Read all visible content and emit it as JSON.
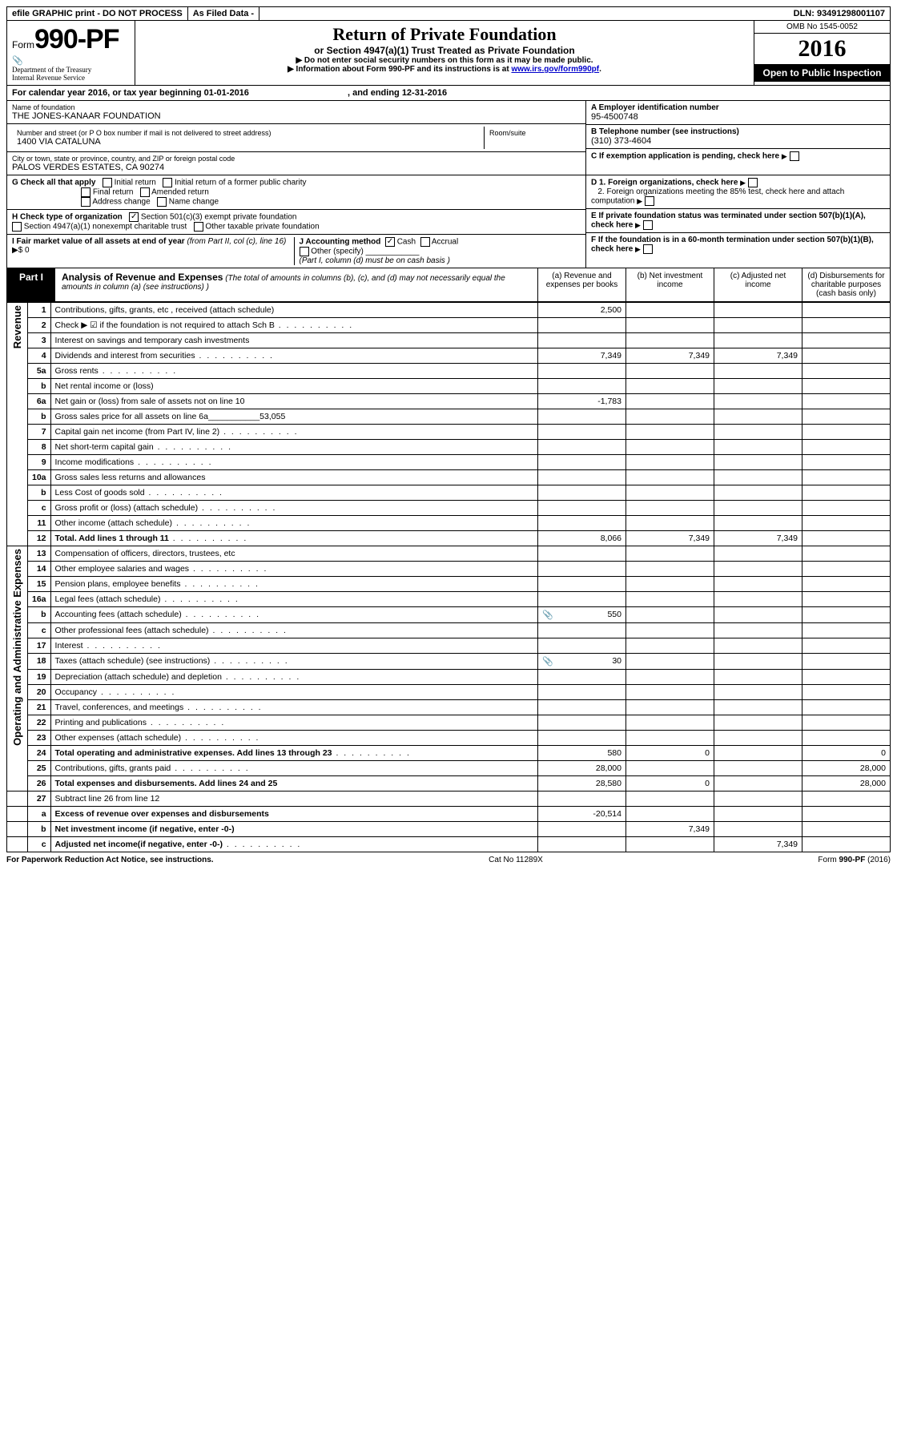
{
  "topbar": {
    "efile": "efile GRAPHIC print - DO NOT PROCESS",
    "asfiled": "As Filed Data -",
    "dln": "DLN: 93491298001107"
  },
  "header": {
    "form_prefix": "Form",
    "form_number": "990-PF",
    "dept1": "Department of the Treasury",
    "dept2": "Internal Revenue Service",
    "title": "Return of Private Foundation",
    "subtitle": "or Section 4947(a)(1) Trust Treated as Private Foundation",
    "note1": "▶ Do not enter social security numbers on this form as it may be made public.",
    "note2": "▶ Information about Form 990-PF and its instructions is at ",
    "link": "www.irs.gov/form990pf",
    "omb": "OMB No 1545-0052",
    "year": "2016",
    "open": "Open to Public Inspection"
  },
  "cal": {
    "text": "For calendar year 2016, or tax year beginning 01-01-2016",
    "ending": ", and ending 12-31-2016"
  },
  "entity": {
    "name_lbl": "Name of foundation",
    "name": "THE JONES-KANAAR FOUNDATION",
    "addr_lbl": "Number and street (or P O  box number if mail is not delivered to street address)",
    "addr": "1400 VIA CATALUNA",
    "room_lbl": "Room/suite",
    "city_lbl": "City or town, state or province, country, and ZIP or foreign postal code",
    "city": "PALOS VERDES ESTATES, CA  90274",
    "ein_lbl": "A Employer identification number",
    "ein": "95-4500748",
    "tel_lbl": "B Telephone number (see instructions)",
    "tel": "(310) 373-4604",
    "c_lbl": "C If exemption application is pending, check here"
  },
  "checks": {
    "g_lbl": "G Check all that apply",
    "g1": "Initial return",
    "g2": "Initial return of a former public charity",
    "g3": "Final return",
    "g4": "Amended return",
    "g5": "Address change",
    "g6": "Name change",
    "h_lbl": "H Check type of organization",
    "h1": "Section 501(c)(3) exempt private foundation",
    "h2": "Section 4947(a)(1) nonexempt charitable trust",
    "h3": "Other taxable private foundation",
    "i_lbl": "I Fair market value of all assets at end of year ",
    "i_it": "(from Part II, col  (c), line 16)",
    "i_val": "▶$  0",
    "j_lbl": "J Accounting method",
    "j1": "Cash",
    "j2": "Accrual",
    "j3": "Other (specify)",
    "j_note": "(Part I, column (d) must be on cash basis )",
    "d1": "D 1. Foreign organizations, check here",
    "d2": "2. Foreign organizations meeting the 85% test, check here and attach computation",
    "e": "E  If private foundation status was terminated under section 507(b)(1)(A), check here",
    "f": "F  If the foundation is in a 60-month termination under section 507(b)(1)(B), check here"
  },
  "part1": {
    "label": "Part I",
    "title": "Analysis of Revenue and Expenses",
    "note": " (The total of amounts in columns (b), (c), and (d) may not necessarily equal the amounts in column (a) (see instructions) )",
    "col_a": "(a)   Revenue and expenses per books",
    "col_b": "(b)  Net investment income",
    "col_c": "(c)  Adjusted net income",
    "col_d": "(d)  Disbursements for charitable purposes (cash basis only)"
  },
  "sections": {
    "revenue": "Revenue",
    "expenses": "Operating and Administrative Expenses"
  },
  "rows": [
    {
      "ln": "1",
      "desc": "Contributions, gifts, grants, etc , received (attach schedule)",
      "a": "2,500",
      "b": "",
      "c": "",
      "d": ""
    },
    {
      "ln": "2",
      "desc": "Check ▶ ☑  if the foundation is not required to attach Sch  B",
      "dots": true,
      "a": "",
      "b": "",
      "c": "",
      "d": ""
    },
    {
      "ln": "3",
      "desc": "Interest on savings and temporary cash investments",
      "a": "",
      "b": "",
      "c": "",
      "d": ""
    },
    {
      "ln": "4",
      "desc": "Dividends and interest from securities",
      "dots": true,
      "a": "7,349",
      "b": "7,349",
      "c": "7,349",
      "d": ""
    },
    {
      "ln": "5a",
      "desc": "Gross rents",
      "dots": true,
      "a": "",
      "b": "",
      "c": "",
      "d": ""
    },
    {
      "ln": "b",
      "desc": "Net rental income or (loss)  ",
      "a": "",
      "b": "",
      "c": "",
      "d": ""
    },
    {
      "ln": "6a",
      "desc": "Net gain or (loss) from sale of assets not on line 10",
      "a": "-1,783",
      "b": "",
      "c": "",
      "d": ""
    },
    {
      "ln": "b",
      "desc": "Gross sales price for all assets on line 6a___________53,055",
      "a": "",
      "b": "",
      "c": "",
      "d": ""
    },
    {
      "ln": "7",
      "desc": "Capital gain net income (from Part IV, line 2)",
      "dots": true,
      "a": "",
      "b": "",
      "c": "",
      "d": ""
    },
    {
      "ln": "8",
      "desc": "Net short-term capital gain",
      "dots": true,
      "a": "",
      "b": "",
      "c": "",
      "d": ""
    },
    {
      "ln": "9",
      "desc": "Income modifications",
      "dots": true,
      "a": "",
      "b": "",
      "c": "",
      "d": ""
    },
    {
      "ln": "10a",
      "desc": "Gross sales less returns and allowances",
      "a": "",
      "b": "",
      "c": "",
      "d": ""
    },
    {
      "ln": "b",
      "desc": "Less  Cost of goods sold",
      "dots": true,
      "a": "",
      "b": "",
      "c": "",
      "d": ""
    },
    {
      "ln": "c",
      "desc": "Gross profit or (loss) (attach schedule)",
      "dots": true,
      "a": "",
      "b": "",
      "c": "",
      "d": ""
    },
    {
      "ln": "11",
      "desc": "Other income (attach schedule)",
      "dots": true,
      "a": "",
      "b": "",
      "c": "",
      "d": ""
    },
    {
      "ln": "12",
      "desc": "Total. Add lines 1 through 11",
      "bold": true,
      "dots": true,
      "a": "8,066",
      "b": "7,349",
      "c": "7,349",
      "d": ""
    }
  ],
  "exp_rows": [
    {
      "ln": "13",
      "desc": "Compensation of officers, directors, trustees, etc",
      "a": "",
      "b": "",
      "c": "",
      "d": ""
    },
    {
      "ln": "14",
      "desc": "Other employee salaries and wages",
      "dots": true,
      "a": "",
      "b": "",
      "c": "",
      "d": ""
    },
    {
      "ln": "15",
      "desc": "Pension plans, employee benefits",
      "dots": true,
      "a": "",
      "b": "",
      "c": "",
      "d": ""
    },
    {
      "ln": "16a",
      "desc": "Legal fees (attach schedule)",
      "dots": true,
      "a": "",
      "b": "",
      "c": "",
      "d": ""
    },
    {
      "ln": "b",
      "desc": "Accounting fees (attach schedule)",
      "dots": true,
      "icon": true,
      "a": "550",
      "b": "",
      "c": "",
      "d": ""
    },
    {
      "ln": "c",
      "desc": "Other professional fees (attach schedule)",
      "dots": true,
      "a": "",
      "b": "",
      "c": "",
      "d": ""
    },
    {
      "ln": "17",
      "desc": "Interest",
      "dots": true,
      "a": "",
      "b": "",
      "c": "",
      "d": ""
    },
    {
      "ln": "18",
      "desc": "Taxes (attach schedule) (see instructions)",
      "dots": true,
      "icon": true,
      "a": "30",
      "b": "",
      "c": "",
      "d": ""
    },
    {
      "ln": "19",
      "desc": "Depreciation (attach schedule) and depletion",
      "dots": true,
      "a": "",
      "b": "",
      "c": "",
      "d": ""
    },
    {
      "ln": "20",
      "desc": "Occupancy",
      "dots": true,
      "a": "",
      "b": "",
      "c": "",
      "d": ""
    },
    {
      "ln": "21",
      "desc": "Travel, conferences, and meetings",
      "dots": true,
      "a": "",
      "b": "",
      "c": "",
      "d": ""
    },
    {
      "ln": "22",
      "desc": "Printing and publications",
      "dots": true,
      "a": "",
      "b": "",
      "c": "",
      "d": ""
    },
    {
      "ln": "23",
      "desc": "Other expenses (attach schedule)",
      "dots": true,
      "a": "",
      "b": "",
      "c": "",
      "d": ""
    },
    {
      "ln": "24",
      "desc": "Total operating and administrative expenses. Add lines 13 through 23",
      "bold": true,
      "dots": true,
      "a": "580",
      "b": "0",
      "c": "",
      "d": "0"
    },
    {
      "ln": "25",
      "desc": "Contributions, gifts, grants paid",
      "dots": true,
      "a": "28,000",
      "b": "",
      "c": "",
      "d": "28,000"
    },
    {
      "ln": "26",
      "desc": "Total expenses and disbursements. Add lines 24 and 25",
      "bold": true,
      "a": "28,580",
      "b": "0",
      "c": "",
      "d": "28,000"
    }
  ],
  "bottom_rows": [
    {
      "ln": "27",
      "desc": "Subtract line 26 from line 12",
      "a": "",
      "b": "",
      "c": "",
      "d": ""
    },
    {
      "ln": "a",
      "desc": "Excess of revenue over expenses and disbursements",
      "bold": true,
      "a": "-20,514",
      "b": "",
      "c": "",
      "d": ""
    },
    {
      "ln": "b",
      "desc": "Net investment income (if negative, enter -0-)",
      "bold": true,
      "a": "",
      "b": "7,349",
      "c": "",
      "d": ""
    },
    {
      "ln": "c",
      "desc": "Adjusted net income(if negative, enter -0-)",
      "bold": true,
      "dots": true,
      "a": "",
      "b": "",
      "c": "7,349",
      "d": ""
    }
  ],
  "footer": {
    "left": "For Paperwork Reduction Act Notice, see instructions.",
    "mid": "Cat  No  11289X",
    "right": "Form 990-PF (2016)"
  }
}
